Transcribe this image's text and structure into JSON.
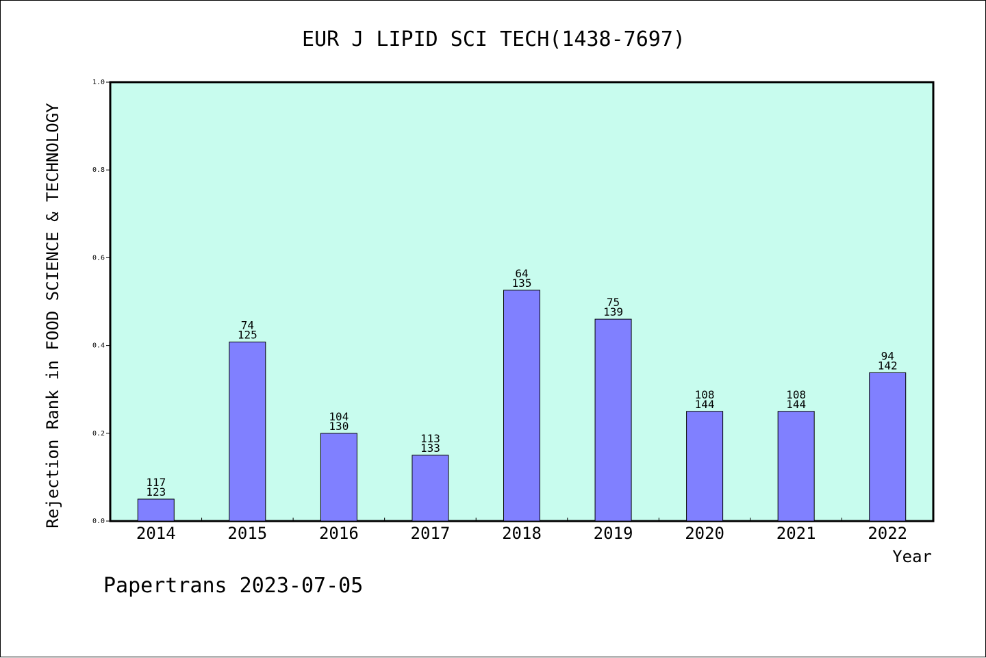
{
  "chart_data": {
    "type": "bar",
    "title": "EUR J LIPID SCI TECH(1438-7697)",
    "xlabel": "Year",
    "ylabel": "Rejection Rank in FOOD SCIENCE & TECHNOLOGY",
    "ylim": [
      0,
      1.0
    ],
    "yticks": [
      "0.0",
      "0.2",
      "0.4",
      "0.6",
      "0.8",
      "1.0"
    ],
    "grid": false,
    "categories": [
      "2014",
      "2015",
      "2016",
      "2017",
      "2018",
      "2019",
      "2020",
      "2021",
      "2022"
    ],
    "values": [
      0.05,
      0.408,
      0.2,
      0.15,
      0.526,
      0.46,
      0.25,
      0.25,
      0.338
    ],
    "rank_labels": [
      "117",
      "74",
      "104",
      "113",
      "64",
      "75",
      "108",
      "108",
      "94"
    ],
    "total_labels": [
      "123",
      "125",
      "130",
      "133",
      "135",
      "139",
      "144",
      "144",
      "142"
    ],
    "colors": {
      "plot_background": "#c8fcee",
      "bar_fill": "#8080ff",
      "bar_stroke": "#000000"
    }
  },
  "footer": "Papertrans 2023-07-05"
}
